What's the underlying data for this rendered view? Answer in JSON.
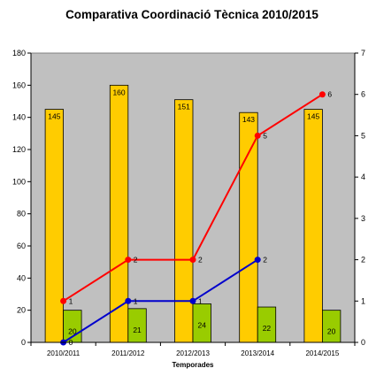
{
  "chart_data": {
    "type": "bar",
    "title": "Comparativa Coordinació Tècnica 2010/2015",
    "xlabel": "Temporades",
    "ylabel": "",
    "categories": [
      "2010/2011",
      "2011/2012",
      "2012/2013",
      "2013/2014",
      "2014/2015"
    ],
    "ylim": [
      0,
      180
    ],
    "y_ticks": [
      0,
      20,
      40,
      60,
      80,
      100,
      120,
      140,
      160,
      180
    ],
    "y2lim": [
      0,
      7
    ],
    "y2_ticks": [
      0,
      1,
      2,
      3,
      4,
      5,
      6,
      7
    ],
    "grid": false,
    "legend": "none",
    "plot_background": "#c0c0c0",
    "series": [
      {
        "kind": "bar",
        "axis": "left",
        "color": "#ffcc00",
        "values": [
          145,
          160,
          151,
          143,
          145
        ]
      },
      {
        "kind": "bar",
        "axis": "left",
        "color": "#99cc00",
        "values": [
          20,
          21,
          24,
          22,
          20
        ]
      },
      {
        "kind": "line",
        "axis": "right",
        "color": "#ff0000",
        "values": [
          1,
          2,
          2,
          5,
          6
        ]
      },
      {
        "kind": "line",
        "axis": "right",
        "color": "#0000cc",
        "values": [
          0,
          1,
          1,
          2,
          null
        ]
      }
    ]
  }
}
